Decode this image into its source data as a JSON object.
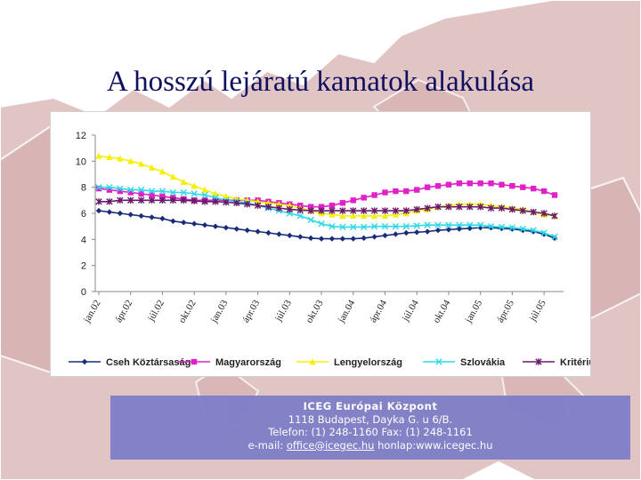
{
  "slide": {
    "title": "A hosszú lejáratú kamatok alakulása"
  },
  "colors": {
    "map_land": "#d7b2b2",
    "footer_bg": "#8080c8",
    "title_color": "#101060"
  },
  "footer": {
    "org": "ICEG Európai Központ",
    "address": "1118 Budapest, Dayka G. u 6/B.",
    "phone": "Telefon: (1) 248-1160 Fax: (1) 248-1161",
    "email_label": "e-mail: ",
    "email": "office@icegec.hu",
    "web": " honlap:www.icegec.hu"
  },
  "chart_data": {
    "type": "line",
    "title": "",
    "xlabel": "",
    "ylabel": "",
    "ylim": [
      0,
      12
    ],
    "yticks": [
      "0",
      "2",
      "4",
      "6",
      "8",
      "10",
      "12"
    ],
    "grid": false,
    "legend_position": "bottom",
    "x_tick_labels": [
      "jan.02",
      "ápr.02",
      "júl.02",
      "okt.02",
      "jan.03",
      "ápr.03",
      "júl.03",
      "okt.03",
      "jan.04",
      "ápr.04",
      "júl.04",
      "okt.04",
      "jan.05",
      "ápr.05",
      "júl.05"
    ],
    "x": [
      "jan.02",
      "feb.02",
      "már.02",
      "ápr.02",
      "máj.02",
      "jún.02",
      "júl.02",
      "aug.02",
      "szep.02",
      "okt.02",
      "nov.02",
      "dec.02",
      "jan.03",
      "feb.03",
      "már.03",
      "ápr.03",
      "máj.03",
      "jún.03",
      "júl.03",
      "aug.03",
      "szep.03",
      "okt.03",
      "nov.03",
      "dec.03",
      "jan.04",
      "feb.04",
      "már.04",
      "ápr.04",
      "máj.04",
      "jún.04",
      "júl.04",
      "aug.04",
      "szep.04",
      "okt.04",
      "nov.04",
      "dec.04",
      "jan.05",
      "feb.05",
      "már.05",
      "ápr.05",
      "máj.05",
      "jún.05",
      "júl.05",
      "aug.05"
    ],
    "series": [
      {
        "name": "Cseh Köztársaság",
        "color": "#1a2b7a",
        "marker": "diamond",
        "values": [
          6.2,
          6.1,
          6.0,
          5.9,
          5.8,
          5.7,
          5.6,
          5.4,
          5.3,
          5.2,
          5.1,
          5.0,
          4.9,
          4.8,
          4.7,
          4.6,
          4.5,
          4.4,
          4.3,
          4.2,
          4.1,
          4.05,
          4.05,
          4.05,
          4.05,
          4.1,
          4.2,
          4.3,
          4.4,
          4.5,
          4.55,
          4.6,
          4.7,
          4.75,
          4.8,
          4.85,
          4.9,
          4.9,
          4.85,
          4.8,
          4.7,
          4.6,
          4.4,
          4.1
        ]
      },
      {
        "name": "Magyarország",
        "color": "#e020c8",
        "marker": "square",
        "values": [
          7.9,
          7.8,
          7.7,
          7.6,
          7.5,
          7.4,
          7.3,
          7.2,
          7.1,
          7.0,
          7.0,
          7.0,
          7.0,
          7.0,
          7.0,
          7.0,
          6.9,
          6.8,
          6.7,
          6.6,
          6.5,
          6.5,
          6.6,
          6.8,
          7.0,
          7.2,
          7.4,
          7.6,
          7.7,
          7.7,
          7.8,
          8.0,
          8.1,
          8.2,
          8.3,
          8.3,
          8.3,
          8.3,
          8.2,
          8.1,
          8.0,
          7.9,
          7.7,
          7.4
        ]
      },
      {
        "name": "Lengyelország",
        "color": "#f5f000",
        "marker": "triangle",
        "values": [
          10.4,
          10.3,
          10.2,
          10.0,
          9.8,
          9.5,
          9.2,
          8.8,
          8.4,
          8.1,
          7.8,
          7.5,
          7.3,
          7.1,
          7.0,
          6.9,
          6.8,
          6.7,
          6.6,
          6.4,
          6.2,
          6.0,
          5.9,
          5.8,
          5.8,
          5.8,
          5.8,
          5.8,
          5.9,
          6.0,
          6.2,
          6.3,
          6.5,
          6.6,
          6.7,
          6.7,
          6.7,
          6.6,
          6.5,
          6.4,
          6.3,
          6.1,
          5.9,
          5.8
        ]
      },
      {
        "name": "Szlovákia",
        "color": "#30d8e8",
        "marker": "x",
        "values": [
          8.0,
          8.0,
          7.9,
          7.8,
          7.8,
          7.7,
          7.7,
          7.6,
          7.6,
          7.5,
          7.4,
          7.2,
          7.0,
          6.9,
          6.8,
          6.6,
          6.4,
          6.2,
          6.0,
          5.8,
          5.5,
          5.2,
          5.0,
          4.95,
          4.95,
          4.95,
          5.0,
          5.0,
          5.0,
          5.0,
          5.05,
          5.1,
          5.1,
          5.1,
          5.1,
          5.1,
          5.1,
          5.0,
          4.95,
          4.9,
          4.8,
          4.7,
          4.5,
          4.2
        ]
      },
      {
        "name": "Kritérium",
        "color": "#6a1a6a",
        "marker": "star",
        "values": [
          6.9,
          6.9,
          7.0,
          7.0,
          7.0,
          7.0,
          7.0,
          7.0,
          7.0,
          6.95,
          6.9,
          6.9,
          6.85,
          6.8,
          6.7,
          6.6,
          6.5,
          6.4,
          6.3,
          6.25,
          6.2,
          6.2,
          6.2,
          6.2,
          6.2,
          6.2,
          6.2,
          6.2,
          6.2,
          6.2,
          6.3,
          6.4,
          6.5,
          6.5,
          6.5,
          6.5,
          6.5,
          6.4,
          6.4,
          6.3,
          6.2,
          6.1,
          6.0,
          5.8
        ]
      }
    ]
  }
}
